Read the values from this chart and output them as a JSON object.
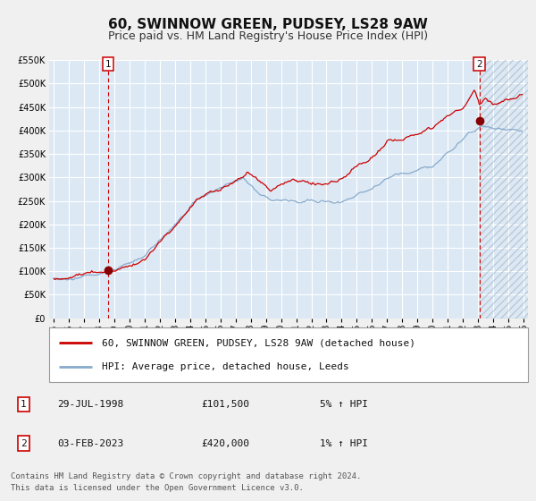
{
  "title": "60, SWINNOW GREEN, PUDSEY, LS28 9AW",
  "subtitle": "Price paid vs. HM Land Registry's House Price Index (HPI)",
  "plot_bg_color": "#dce9f5",
  "fig_bg_color": "#f0f0f0",
  "grid_color": "#ffffff",
  "line1_color": "#cc0000",
  "line2_color": "#88aacc",
  "marker_color": "#880000",
  "vline_color": "#cc0000",
  "legend_label1": "60, SWINNOW GREEN, PUDSEY, LS28 9AW (detached house)",
  "legend_label2": "HPI: Average price, detached house, Leeds",
  "annotation1_date": "29-JUL-1998",
  "annotation1_price": "£101,500",
  "annotation1_hpi": "5% ↑ HPI",
  "annotation2_date": "03-FEB-2023",
  "annotation2_price": "£420,000",
  "annotation2_hpi": "1% ↑ HPI",
  "point1_x": 1998.57,
  "point1_y": 101500,
  "point2_x": 2023.09,
  "point2_y": 420000,
  "ylim": [
    0,
    550000
  ],
  "xlim_start": 1994.7,
  "xlim_end": 2026.3,
  "footer_text": "Contains HM Land Registry data © Crown copyright and database right 2024.\nThis data is licensed under the Open Government Licence v3.0.",
  "title_fontsize": 11,
  "subtitle_fontsize": 9,
  "tick_fontsize": 7,
  "legend_fontsize": 8,
  "annot_fontsize": 8,
  "footer_fontsize": 6.5
}
